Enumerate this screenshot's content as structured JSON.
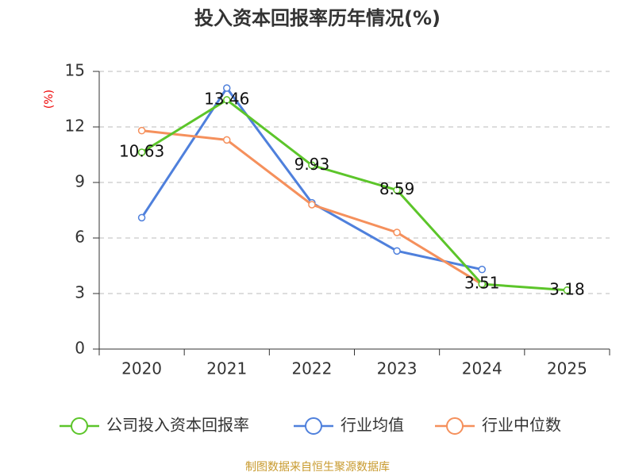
{
  "chart_data": {
    "type": "line",
    "title": "投入资本回报率历年情况(%)",
    "y_label": "(%)",
    "categories": [
      "2020",
      "2021",
      "2022",
      "2023",
      "2024",
      "2025"
    ],
    "series": [
      {
        "name": "公司投入资本回报率",
        "color": "#5cc52a",
        "values": [
          10.63,
          13.46,
          9.93,
          8.59,
          3.51,
          3.18
        ],
        "show_labels": true
      },
      {
        "name": "行业均值",
        "color": "#4f80dc",
        "values": [
          7.1,
          14.1,
          7.9,
          5.3,
          4.3,
          null
        ],
        "show_labels": false
      },
      {
        "name": "行业中位数",
        "color": "#f5905c",
        "values": [
          11.8,
          11.3,
          7.8,
          6.3,
          3.5,
          null
        ],
        "show_labels": false
      }
    ],
    "ylim": [
      0,
      15
    ],
    "yticks": [
      0,
      3,
      6,
      9,
      12,
      15
    ],
    "grid": true,
    "source": "制图数据来自恒生聚源数据库"
  }
}
